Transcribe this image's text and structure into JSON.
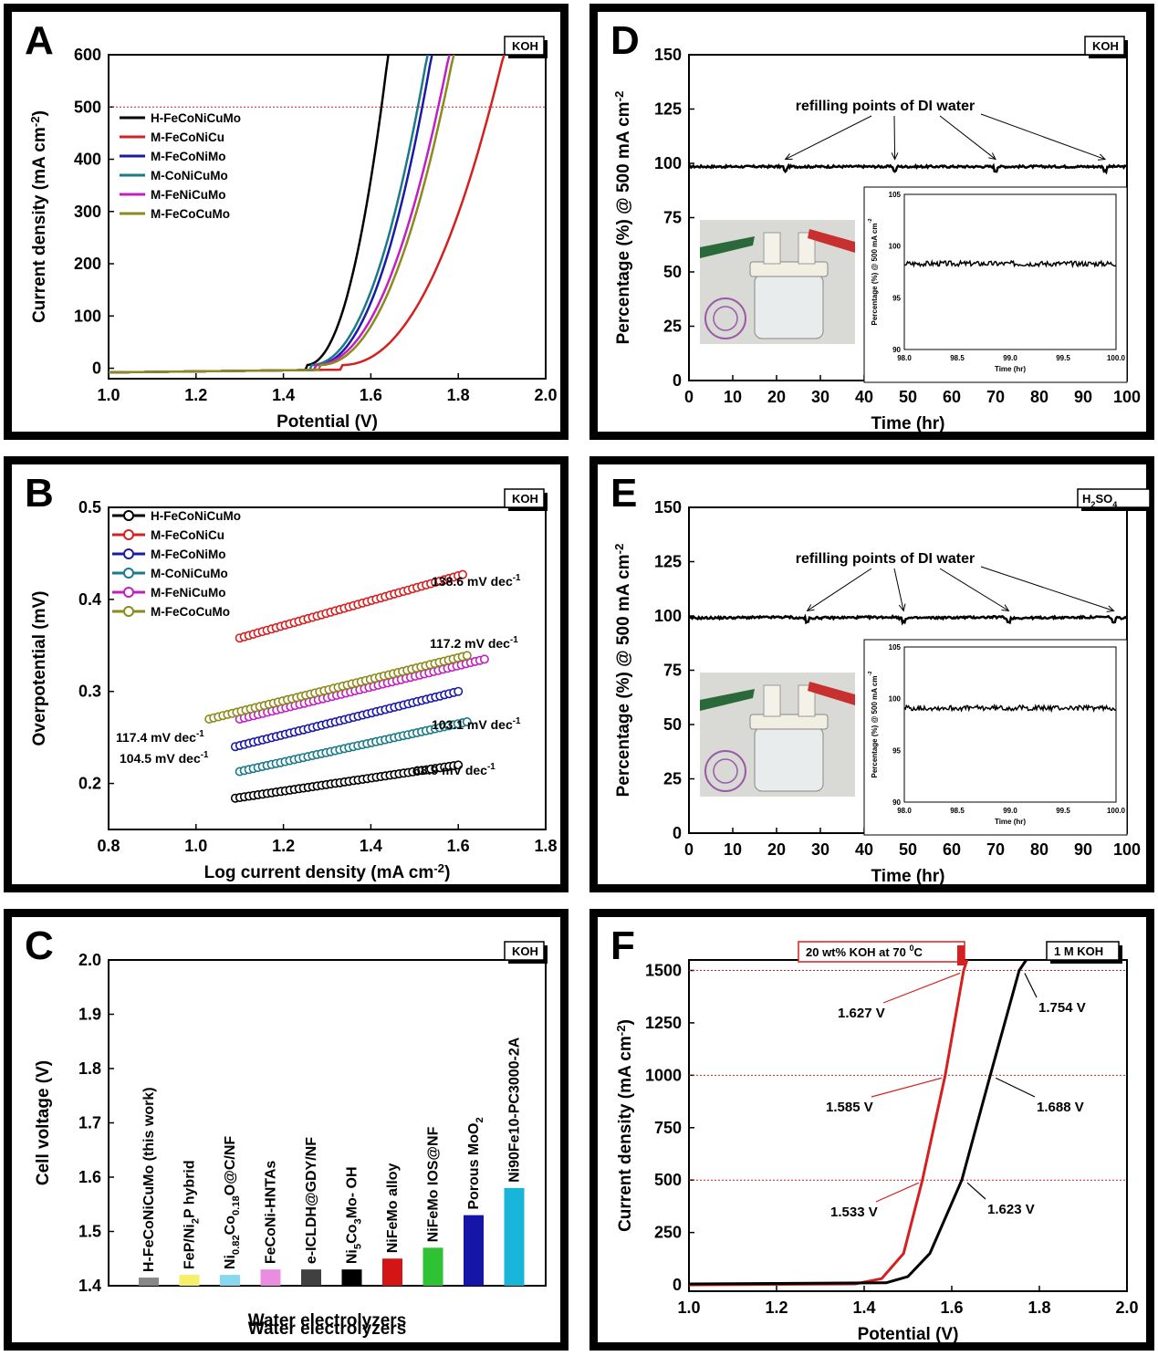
{
  "chart_data": [
    {
      "panel": "A",
      "type": "line",
      "badge": "KOH",
      "xlabel": "Potential (V)",
      "ylabel": "Current density (mA cm-2)",
      "xlim": [
        1.0,
        2.0
      ],
      "ylim": [
        -20,
        600
      ],
      "xticks": [
        "1.0",
        "1.2",
        "1.4",
        "1.6",
        "1.8",
        "2.0"
      ],
      "yticks": [
        "0",
        "100",
        "200",
        "300",
        "400",
        "500",
        "600"
      ],
      "reference_line": 500,
      "legend_position": "upper-left",
      "series": [
        {
          "name": "H-FeCoNiCuMo",
          "color": "#000000",
          "onset": 1.45,
          "end": 1.64
        },
        {
          "name": "M-FeCoNiCu",
          "color": "#d42020",
          "onset": 1.53,
          "end": 1.905
        },
        {
          "name": "M-FeCoNiMo",
          "color": "#1a1aa8",
          "onset": 1.47,
          "end": 1.74
        },
        {
          "name": "M-CoNiCuMo",
          "color": "#1a7a8a",
          "onset": 1.46,
          "end": 1.73
        },
        {
          "name": "M-FeNiCuMo",
          "color": "#c21fc2",
          "onset": 1.47,
          "end": 1.78
        },
        {
          "name": "M-FeCoCuMo",
          "color": "#8c8a1a",
          "onset": 1.48,
          "end": 1.79
        }
      ]
    },
    {
      "panel": "B",
      "type": "scatter",
      "badge": "KOH",
      "xlabel": "Log current density (mA cm-2)",
      "ylabel": "Overpotential (mV)",
      "xlim": [
        0.8,
        1.8
      ],
      "ylim": [
        0.15,
        0.5
      ],
      "xticks": [
        "0.8",
        "1.0",
        "1.2",
        "1.4",
        "1.6",
        "1.8"
      ],
      "yticks": [
        "0.2",
        "0.3",
        "0.4",
        "0.5"
      ],
      "legend_position": "upper-left",
      "series": [
        {
          "name": "H-FeCoNiCuMo",
          "color": "#000000",
          "x0": 1.09,
          "x1": 1.6,
          "y0": 0.184,
          "y1": 0.22,
          "slope_label": "68.9 mV dec-1"
        },
        {
          "name": "M-FeCoNiCu",
          "color": "#d42020",
          "x0": 1.1,
          "x1": 1.61,
          "y0": 0.358,
          "y1": 0.427,
          "slope_label": "138.6 mV dec-1"
        },
        {
          "name": "M-FeCoNiMo",
          "color": "#1a1aa8",
          "x0": 1.09,
          "x1": 1.6,
          "y0": 0.24,
          "y1": 0.3,
          "slope_label": "104.5 mV dec-1"
        },
        {
          "name": "M-CoNiCuMo",
          "color": "#1a7a8a",
          "x0": 1.1,
          "x1": 1.62,
          "y0": 0.213,
          "y1": 0.267,
          "slope_label": "103.1 mV dec-1"
        },
        {
          "name": "M-FeNiCuMo",
          "color": "#c21fc2",
          "x0": 1.1,
          "x1": 1.66,
          "y0": 0.27,
          "y1": 0.335,
          "slope_label": "117.4 mV dec-1"
        },
        {
          "name": "M-FeCoCuMo",
          "color": "#8c8a1a",
          "x0": 1.03,
          "x1": 1.62,
          "y0": 0.27,
          "y1": 0.339,
          "slope_label": "117.2 mV dec-1"
        }
      ]
    },
    {
      "panel": "C",
      "type": "bar",
      "badge": "KOH",
      "xlabel": "Water electrolyzers",
      "ylabel": "Cell voltage (V)",
      "ylim": [
        1.4,
        2.0
      ],
      "yticks": [
        "1.4",
        "1.5",
        "1.6",
        "1.7",
        "1.8",
        "1.9",
        "2.0"
      ],
      "categories": [
        "H-FeCoNiCuMo (this work)",
        "FeP/Ni2P hybrid",
        "Ni0.82Co0.18O@C/NF",
        "FeCoNi-HNTAs",
        "e-ICLDH@GDY/NF",
        "Ni5Co3Mo- OH",
        "NiFeMo alloy",
        "NiFeMo IOS@NF",
        "Porous MoO2",
        "Ni90Fe10-PC3000-2A"
      ],
      "values": [
        1.415,
        1.42,
        1.42,
        1.43,
        1.43,
        1.43,
        1.45,
        1.47,
        1.53,
        1.58
      ],
      "colors": [
        "#888888",
        "#f5ef6a",
        "#86d9f0",
        "#ea8ce0",
        "#404040",
        "#000000",
        "#d41515",
        "#2ec234",
        "#1515a8",
        "#19b5d8"
      ]
    },
    {
      "panel": "D",
      "type": "line",
      "badge": "KOH",
      "xlabel": "Time (hr)",
      "ylabel": "Percentage (%) @ 500 mA cm-2",
      "xlim": [
        0,
        100
      ],
      "ylim": [
        0,
        150
      ],
      "xticks": [
        "0",
        "10",
        "20",
        "30",
        "40",
        "50",
        "60",
        "70",
        "80",
        "90",
        "100"
      ],
      "yticks": [
        "0",
        "25",
        "50",
        "75",
        "100",
        "125",
        "150"
      ],
      "annotation": "refilling points of DI water",
      "refill_points": [
        22,
        47,
        70,
        95
      ],
      "series": [
        {
          "name": "",
          "level": 98.5
        }
      ],
      "inset": {
        "xlabel": "Time (hr)",
        "ylabel": "Percentage (%) @ 500 mA cm-2",
        "xlim": [
          98.0,
          100.0
        ],
        "ylim": [
          90,
          105
        ],
        "xticks": [
          "98.0",
          "98.5",
          "99.0",
          "99.5",
          "100.0"
        ],
        "yticks": [
          "90",
          "95",
          "100",
          "105"
        ],
        "level": 98.3
      }
    },
    {
      "panel": "E",
      "type": "line",
      "badge": "H2SO4",
      "xlabel": "Time (hr)",
      "ylabel": "Percentage (%) @ 500 mA cm-2",
      "xlim": [
        0,
        100
      ],
      "ylim": [
        0,
        150
      ],
      "xticks": [
        "0",
        "10",
        "20",
        "30",
        "40",
        "50",
        "60",
        "70",
        "80",
        "90",
        "100"
      ],
      "yticks": [
        "0",
        "25",
        "50",
        "75",
        "100",
        "125",
        "150"
      ],
      "annotation": "refilling points of DI water",
      "refill_points": [
        27,
        49,
        73,
        97
      ],
      "series": [
        {
          "name": "",
          "level": 99
        }
      ],
      "inset": {
        "xlabel": "Time (hr)",
        "ylabel": "Percentage (%) @ 500 mA cm-2",
        "xlim": [
          98.0,
          100.0
        ],
        "ylim": [
          90,
          105
        ],
        "xticks": [
          "98.0",
          "98.5",
          "99.0",
          "99.5",
          "100.0"
        ],
        "yticks": [
          "90",
          "95",
          "100",
          "105"
        ],
        "level": 99.1
      }
    },
    {
      "panel": "F",
      "type": "line",
      "badge": "1 M KOH",
      "red_badge": "20 wt% KOH at 70 0C",
      "xlabel": "Potential (V)",
      "ylabel": "Current density (mA cm-2)",
      "xlim": [
        1.0,
        2.0
      ],
      "ylim": [
        -30,
        1550
      ],
      "xticks": [
        "1.0",
        "1.2",
        "1.4",
        "1.6",
        "1.8",
        "2.0"
      ],
      "yticks": [
        "0",
        "250",
        "500",
        "750",
        "1000",
        "1250",
        "1500"
      ],
      "reference_lines": [
        500,
        1000,
        1500
      ],
      "series": [
        {
          "name": "20 wt% KOH at 70 0C",
          "color": "#d42020",
          "points": [
            [
              1.0,
              0
            ],
            [
              1.38,
              5
            ],
            [
              1.44,
              30
            ],
            [
              1.49,
              150
            ],
            [
              1.533,
              500
            ],
            [
              1.585,
              1000
            ],
            [
              1.627,
              1500
            ],
            [
              1.635,
              1550
            ]
          ],
          "labels": [
            "1.533 V",
            "1.585 V",
            "1.627 V"
          ]
        },
        {
          "name": "1 M KOH",
          "color": "#000000",
          "points": [
            [
              1.0,
              5
            ],
            [
              1.45,
              10
            ],
            [
              1.5,
              40
            ],
            [
              1.55,
              150
            ],
            [
              1.623,
              500
            ],
            [
              1.688,
              1000
            ],
            [
              1.754,
              1500
            ],
            [
              1.77,
              1550
            ]
          ],
          "labels": [
            "1.623 V",
            "1.688 V",
            "1.754 V"
          ]
        }
      ]
    }
  ]
}
